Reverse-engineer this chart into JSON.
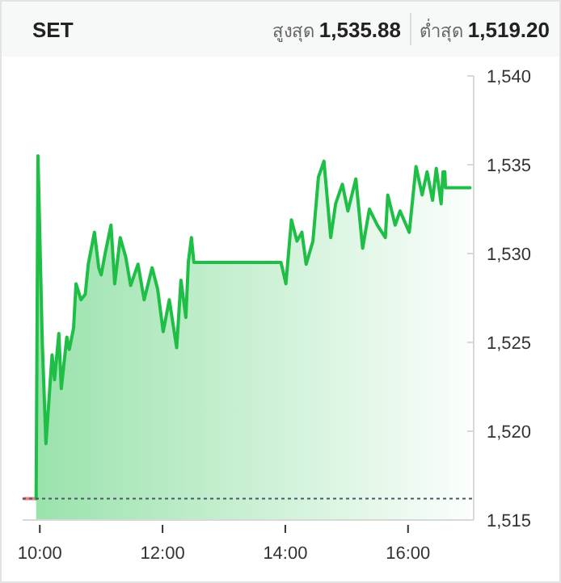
{
  "chart_data": {
    "type": "area",
    "title": "SET",
    "annotations": [
      "สูงสุด **1,535.88**",
      "ต่ำสุด **1,519.20**"
    ],
    "xlim": [
      9.72,
      17.07
    ],
    "xticks": [
      {
        "value": 10,
        "label": "10:00"
      },
      {
        "value": 12,
        "label": "12:00"
      },
      {
        "value": 14,
        "label": "14:00"
      },
      {
        "value": 16,
        "label": "16:00"
      }
    ],
    "ylim": [
      1515,
      1540
    ],
    "yticks": [
      {
        "value": 1515,
        "label": "1,515"
      },
      {
        "value": 1520,
        "label": "1,520"
      },
      {
        "value": 1525,
        "label": "1,525"
      },
      {
        "value": 1530,
        "label": "1,530"
      },
      {
        "value": 1535,
        "label": "1,535"
      },
      {
        "value": 1540,
        "label": "1,540"
      }
    ],
    "grid": false,
    "marker": "none",
    "line_style": "solid",
    "ref_lines": [
      {
        "axis": "y",
        "value": 1516.2,
        "color": "#4a5a6a",
        "line_style": "dotted"
      }
    ],
    "series": [
      {
        "type": "line",
        "color": "#f08080",
        "x": [
          9.74,
          9.94
        ],
        "values": [
          1516.2,
          1516.2
        ]
      },
      {
        "type": "area",
        "color": "#1fbf47",
        "x": [
          9.94,
          9.97,
          10.04,
          10.1,
          10.2,
          10.24,
          10.31,
          10.35,
          10.44,
          10.48,
          10.55,
          10.59,
          10.67,
          10.74,
          10.79,
          10.89,
          10.96,
          11.0,
          11.07,
          11.16,
          11.22,
          11.31,
          11.4,
          11.48,
          11.6,
          11.7,
          11.83,
          11.92,
          12.01,
          12.11,
          12.23,
          12.3,
          12.38,
          12.42,
          12.47,
          12.51,
          13.93,
          14.01,
          14.1,
          14.19,
          14.27,
          14.34,
          14.45,
          14.54,
          14.63,
          14.74,
          14.82,
          14.93,
          15.02,
          15.15,
          15.26,
          15.37,
          15.5,
          15.63,
          15.67,
          15.79,
          15.87,
          16.02,
          16.13,
          16.23,
          16.31,
          16.4,
          16.46,
          16.54,
          16.57,
          16.6,
          16.61,
          17.01
        ],
        "values": [
          1516.2,
          1535.5,
          1525.0,
          1519.3,
          1524.3,
          1522.9,
          1525.5,
          1522.4,
          1525.3,
          1524.6,
          1525.8,
          1528.3,
          1527.4,
          1527.7,
          1529.4,
          1531.2,
          1529.2,
          1528.8,
          1530.1,
          1531.6,
          1528.3,
          1530.9,
          1529.8,
          1528.2,
          1529.4,
          1527.4,
          1529.2,
          1528.0,
          1525.6,
          1527.4,
          1524.7,
          1528.5,
          1526.4,
          1529.5,
          1530.9,
          1529.5,
          1529.5,
          1528.3,
          1531.9,
          1530.7,
          1531.2,
          1529.4,
          1530.7,
          1534.3,
          1535.2,
          1530.9,
          1532.8,
          1533.9,
          1532.4,
          1534.2,
          1530.3,
          1532.5,
          1531.6,
          1530.9,
          1533.3,
          1531.6,
          1532.4,
          1531.2,
          1534.9,
          1533.3,
          1534.6,
          1533.0,
          1534.8,
          1532.8,
          1534.6,
          1534.6,
          1533.7,
          1533.7
        ]
      }
    ]
  }
}
